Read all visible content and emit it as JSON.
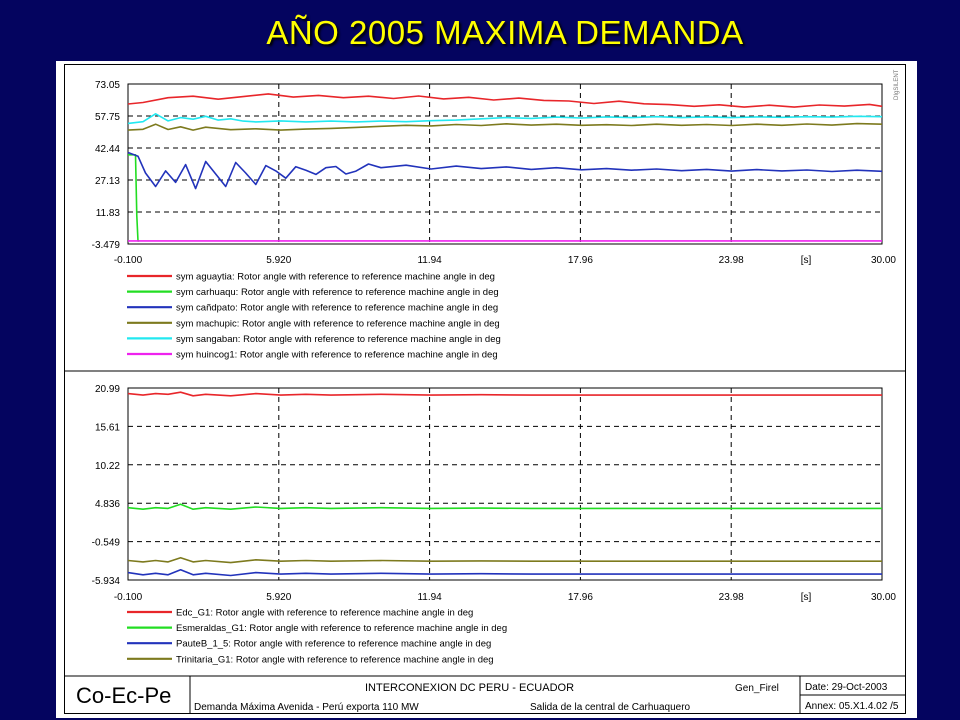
{
  "slide": {
    "title": "AÑO 2005 MAXIMA DEMANDA"
  },
  "chart_data": [
    {
      "type": "line",
      "x_ticks": [
        "-0.100",
        "5.920",
        "11.94",
        "17.96",
        "23.98",
        "30.00"
      ],
      "x_unit": "[s]",
      "xlim": [
        -0.1,
        30.0
      ],
      "y_ticks": [
        "73.05",
        "57.75",
        "42.44",
        "27.13",
        "11.83",
        "-3.479"
      ],
      "ylim": [
        -3.479,
        73.05
      ],
      "grid": true,
      "legend_position": "below",
      "series": [
        {
          "name": "sym aguaytia: Rotor angle with reference to reference machine angle in deg",
          "color": "#e8262a",
          "x": [
            -0.1,
            0.5,
            1.5,
            2.5,
            3.5,
            4.5,
            5.5,
            6.5,
            7.5,
            8.5,
            9.5,
            10.5,
            11.5,
            12.5,
            13.5,
            14.5,
            15.5,
            16.5,
            17.5,
            18.5,
            19.5,
            20.5,
            21.5,
            22.5,
            23.5,
            24.5,
            25.5,
            26.5,
            27.5,
            28.5,
            29.5,
            30.0
          ],
          "y": [
            63.5,
            64.2,
            66.5,
            67.2,
            65.8,
            67.0,
            68.3,
            66.8,
            67.6,
            66.5,
            67.2,
            66.1,
            67.3,
            65.9,
            66.7,
            65.4,
            66.3,
            65.2,
            64.9,
            63.7,
            64.8,
            63.6,
            63.2,
            62.4,
            63.1,
            62.0,
            62.9,
            62.0,
            63.0,
            62.5,
            63.3,
            62.4
          ]
        },
        {
          "name": "sym carhuaqu: Rotor angle with reference to reference machine angle in deg",
          "color": "#22dd22",
          "x": [
            -0.1,
            0.2,
            0.25,
            0.3,
            0.35
          ],
          "y": [
            39.2,
            39.2,
            10.0,
            -2.0,
            -2.0
          ]
        },
        {
          "name": "sym cañdpato: Rotor angle with reference to reference machine angle in deg",
          "color": "#2233bb",
          "x": [
            -0.1,
            0.3,
            0.6,
            1.0,
            1.4,
            1.8,
            2.2,
            2.6,
            3.0,
            3.4,
            3.8,
            4.2,
            4.6,
            5.0,
            5.4,
            5.8,
            6.2,
            6.6,
            7.0,
            7.4,
            7.8,
            8.2,
            8.6,
            9.0,
            9.5,
            10.0,
            11.0,
            12.0,
            13.0,
            14.0,
            15.0,
            16.0,
            17.0,
            18.0,
            19.0,
            20.0,
            21.0,
            22.0,
            23.0,
            24.0,
            25.0,
            26.0,
            27.0,
            28.0,
            29.0,
            30.0
          ],
          "y": [
            40.3,
            38.5,
            30.5,
            24.0,
            31.5,
            26.0,
            34.5,
            23.0,
            36.0,
            30.0,
            24.0,
            35.5,
            30.5,
            25.0,
            34.0,
            31.5,
            28.0,
            33.5,
            31.8,
            29.8,
            33.0,
            33.6,
            30.0,
            31.4,
            34.8,
            33.0,
            34.2,
            32.4,
            33.8,
            32.6,
            33.4,
            32.2,
            33.0,
            32.0,
            32.6,
            31.8,
            32.4,
            31.6,
            32.2,
            31.4,
            32.1,
            31.5,
            31.9,
            31.2,
            31.8,
            31.3
          ]
        },
        {
          "name": "sym machupic: Rotor angle with reference to reference machine angle in deg",
          "color": "#7d7a1e",
          "x": [
            -0.1,
            0.5,
            1.0,
            1.5,
            2.0,
            2.5,
            3.0,
            4.0,
            5.0,
            6.0,
            7.0,
            8.0,
            9.0,
            10.0,
            11.0,
            12.0,
            13.0,
            14.0,
            15.0,
            16.0,
            17.0,
            18.0,
            19.0,
            20.0,
            21.0,
            22.0,
            23.0,
            24.0,
            25.0,
            26.0,
            27.0,
            28.0,
            29.0,
            30.0
          ],
          "y": [
            51.0,
            51.4,
            53.8,
            51.3,
            52.6,
            51.0,
            52.4,
            51.2,
            51.6,
            51.0,
            51.5,
            51.8,
            52.3,
            52.8,
            53.3,
            53.0,
            53.7,
            53.2,
            54.0,
            53.4,
            53.8,
            53.3,
            53.6,
            53.2,
            53.8,
            53.3,
            53.7,
            53.2,
            53.8,
            53.3,
            53.9,
            53.4,
            54.1,
            53.8
          ]
        },
        {
          "name": "sym sangaban: Rotor angle with reference to reference machine angle in deg",
          "color": "#22e8f0",
          "x": [
            -0.1,
            0.5,
            1.0,
            1.5,
            2.0,
            2.5,
            3.0,
            3.5,
            4.0,
            4.5,
            5.0,
            6.0,
            7.0,
            8.0,
            9.0,
            10.0,
            11.0,
            12.0,
            13.0,
            14.0,
            15.0,
            16.0,
            17.0,
            18.0,
            19.0,
            20.0,
            21.0,
            22.0,
            23.0,
            24.0,
            25.0,
            26.0,
            27.0,
            28.0,
            29.0,
            30.0
          ],
          "y": [
            54.2,
            55.0,
            58.8,
            55.4,
            57.0,
            56.2,
            57.6,
            55.8,
            56.4,
            55.3,
            54.9,
            55.4,
            54.9,
            55.3,
            54.9,
            55.3,
            55.0,
            55.5,
            55.8,
            56.4,
            57.0,
            56.6,
            57.2,
            56.8,
            57.3,
            57.0,
            57.4,
            57.0,
            57.3,
            57.0,
            57.3,
            57.1,
            57.4,
            57.2,
            57.6,
            57.4
          ]
        },
        {
          "name": "sym huincog1: Rotor angle with reference to reference machine angle in deg",
          "color": "#ee22ee",
          "x": [
            -0.1,
            30.0
          ],
          "y": [
            -2.0,
            -2.0
          ]
        }
      ]
    },
    {
      "type": "line",
      "x_ticks": [
        "-0.100",
        "5.920",
        "11.94",
        "17.96",
        "23.98",
        "30.00"
      ],
      "x_unit": "[s]",
      "xlim": [
        -0.1,
        30.0
      ],
      "y_ticks": [
        "20.99",
        "15.61",
        "10.22",
        "4.836",
        "-0.549",
        "-5.934"
      ],
      "ylim": [
        -5.934,
        20.99
      ],
      "grid": true,
      "legend_position": "below",
      "series": [
        {
          "name": "Edc_G1: Rotor angle with reference to reference machine angle in deg",
          "color": "#e8262a",
          "x": [
            -0.1,
            0.5,
            1.0,
            1.5,
            2.0,
            2.5,
            3.0,
            4.0,
            5.0,
            6.0,
            7.0,
            8.0,
            10.0,
            12.0,
            14.0,
            16.0,
            20.0,
            25.0,
            30.0
          ],
          "y": [
            20.2,
            20.0,
            20.2,
            20.1,
            20.4,
            19.9,
            20.1,
            19.9,
            20.2,
            20.0,
            20.1,
            20.0,
            20.1,
            20.0,
            20.05,
            20.0,
            20.0,
            20.0,
            20.0
          ]
        },
        {
          "name": "Esmeraldas_G1: Rotor angle with reference to reference machine angle in deg",
          "color": "#22dd22",
          "x": [
            -0.1,
            0.5,
            1.0,
            1.5,
            2.0,
            2.5,
            3.0,
            4.0,
            5.0,
            6.0,
            7.0,
            8.0,
            10.0,
            12.0,
            14.0,
            16.0,
            20.0,
            25.0,
            30.0
          ],
          "y": [
            4.2,
            4.0,
            4.2,
            4.1,
            4.7,
            4.0,
            4.2,
            4.0,
            4.3,
            4.1,
            4.2,
            4.1,
            4.2,
            4.1,
            4.15,
            4.1,
            4.1,
            4.1,
            4.1
          ]
        },
        {
          "name": "PauteB_1_5: Rotor angle with reference to reference machine angle in deg",
          "color": "#2233bb",
          "x": [
            -0.1,
            0.5,
            1.0,
            1.5,
            2.0,
            2.5,
            3.0,
            4.0,
            5.0,
            6.0,
            7.0,
            8.0,
            10.0,
            12.0,
            14.0,
            16.0,
            20.0,
            25.0,
            30.0
          ],
          "y": [
            -4.9,
            -5.2,
            -5.0,
            -5.2,
            -4.5,
            -5.2,
            -5.0,
            -5.3,
            -4.9,
            -5.1,
            -5.0,
            -5.1,
            -5.0,
            -5.1,
            -5.05,
            -5.1,
            -5.1,
            -5.1,
            -5.1
          ]
        },
        {
          "name": "Trinitaria_G1: Rotor angle with reference to reference machine angle in deg",
          "color": "#7d7a1e",
          "x": [
            -0.1,
            0.5,
            1.0,
            1.5,
            2.0,
            2.5,
            3.0,
            4.0,
            5.0,
            6.0,
            7.0,
            8.0,
            10.0,
            12.0,
            14.0,
            16.0,
            20.0,
            25.0,
            30.0
          ],
          "y": [
            -3.2,
            -3.4,
            -3.2,
            -3.4,
            -2.8,
            -3.4,
            -3.2,
            -3.5,
            -3.1,
            -3.3,
            -3.2,
            -3.3,
            -3.2,
            -3.3,
            -3.25,
            -3.3,
            -3.3,
            -3.3,
            -3.3
          ]
        }
      ]
    }
  ],
  "footer": {
    "logo": "Co-Ec-Pe",
    "title": "INTERCONEXION DC PERU - ECUADOR",
    "subtitle_left": "Demanda Máxima Avenida - Perú exporta 110 MW",
    "subtitle_right": "Salida de la central de Carhuaquero",
    "code": "Gen_Firel",
    "date": "Date:  29-Oct-2003",
    "annex": "Annex: 05.X1.4.02 /5"
  },
  "watermark": "DIgSILENT"
}
